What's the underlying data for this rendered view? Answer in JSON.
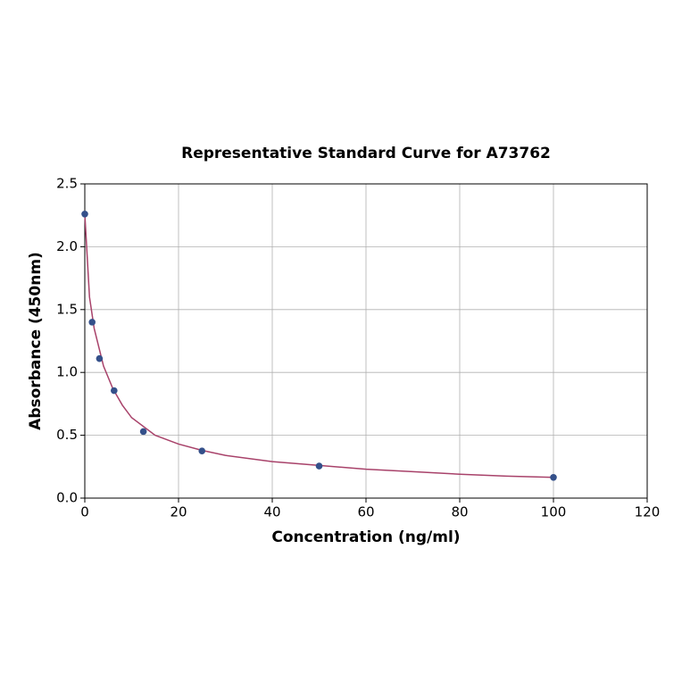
{
  "chart_data": {
    "type": "scatter",
    "title": "Representative Standard Curve for A73762",
    "x_label": "Concentration (ng/ml)",
    "y_label": "Absorbance (450nm)",
    "x": [
      0,
      1.563,
      3.125,
      6.25,
      12.5,
      25,
      50,
      100
    ],
    "values": [
      2.26,
      1.4,
      1.11,
      0.855,
      0.53,
      0.375,
      0.255,
      0.165
    ],
    "color": "#34508a",
    "curve": {
      "type": "line",
      "color": "#a8426a",
      "x": [
        0,
        1,
        2,
        4,
        6,
        8,
        10,
        15,
        20,
        25,
        30,
        40,
        50,
        60,
        70,
        80,
        90,
        100
      ],
      "values": [
        2.26,
        1.6,
        1.35,
        1.05,
        0.87,
        0.74,
        0.64,
        0.5,
        0.43,
        0.38,
        0.34,
        0.29,
        0.26,
        0.23,
        0.21,
        0.19,
        0.175,
        0.165
      ]
    },
    "xlim": [
      0,
      120
    ],
    "xticks": [
      0,
      20,
      40,
      60,
      80,
      100,
      120
    ],
    "ylim": [
      0,
      2.5
    ],
    "yticks": [
      {
        "value": 0,
        "label": "0.0"
      },
      {
        "value": 0.5,
        "label": "0.5"
      },
      {
        "value": 1,
        "label": "1.0"
      },
      {
        "value": 1.5,
        "label": "1.5"
      },
      {
        "value": 2,
        "label": "2.0"
      },
      {
        "value": 2.5,
        "label": "2.5"
      }
    ],
    "grid": true
  }
}
